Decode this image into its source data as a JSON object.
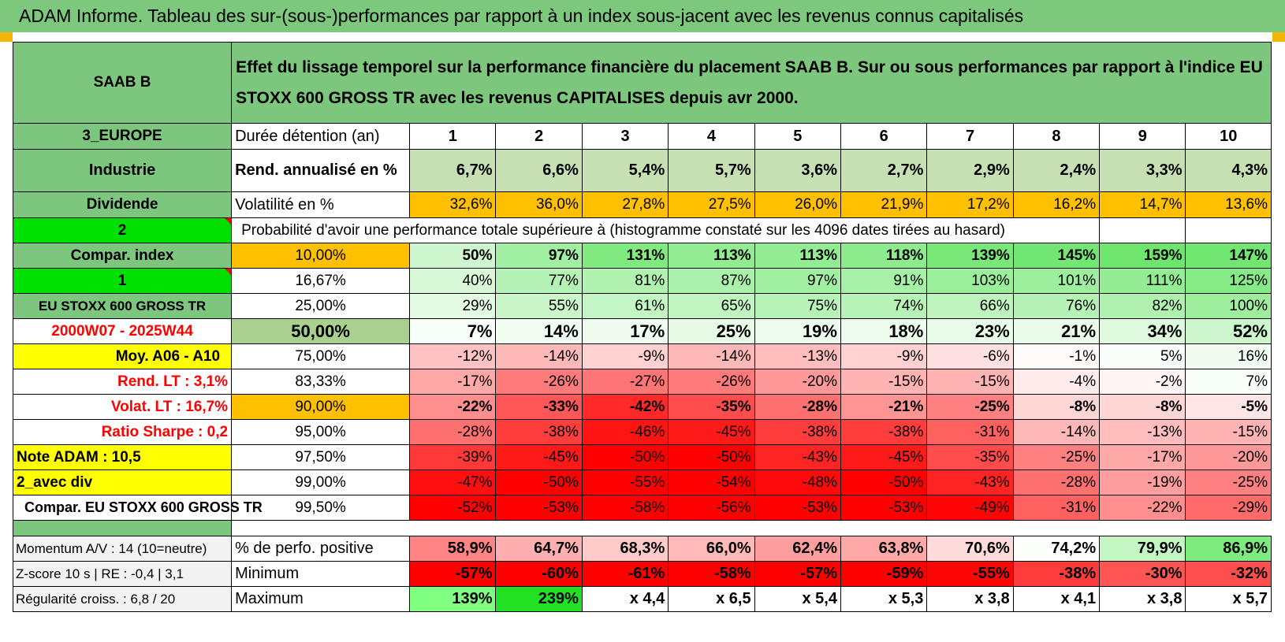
{
  "title": "ADAM Informe. Tableau des sur-(sous-)performances par rapport à un index sous-jacent avec les revenus connus capitalisés",
  "header": {
    "asset": "SAAB B",
    "description": "Effet du lissage temporel sur la performance financière du placement SAAB B. Sur ou sous performances par rapport à l'indice EU STOXX 600 GROSS TR avec les revenus CAPITALISES depuis avr 2000."
  },
  "left_panel": {
    "region": "3_EUROPE",
    "sector": "Industrie",
    "income_type": "Dividende",
    "selector_1": "2",
    "compare_index_label": "Compar. index",
    "selector_2": "1",
    "index_name": "EU STOXX 600 GROSS TR",
    "period": "2000W07 - 2025W44",
    "moy_label": "Moy. A06 - A10",
    "rend_lt": "Rend. LT :    3,1%",
    "volat_lt": "Volat. LT :    16,7%",
    "sharpe": "Ratio Sharpe :    0,2",
    "note_adam": "Note ADAM : 10,5",
    "div_mode": "2_avec div",
    "compar_text": "Compar. EU STOXX 600 GROSS TR",
    "momentum": "Momentum A/V : 14 (10=neutre)",
    "zscore": "Z-score 10 s | RE : -0,4 | 3,1",
    "regularite": "Régularité croiss. : 6,8 / 20"
  },
  "row_labels": {
    "duration": "Durée détention (an)",
    "rend": "Rend. annualisé en %",
    "volat": "Volatilité en %",
    "prob": "Probabilité d'avoir une performance totale supérieure à (histogramme constaté sur les 4096 dates tirées au hasard)",
    "pct_pos": "% de perfo. positive",
    "min": "Minimum",
    "max": "Maximum"
  },
  "years": [
    "1",
    "2",
    "3",
    "4",
    "5",
    "6",
    "7",
    "8",
    "9",
    "10"
  ],
  "rend_values": [
    "6,7%",
    "6,6%",
    "5,4%",
    "5,7%",
    "3,6%",
    "2,7%",
    "2,9%",
    "2,4%",
    "3,3%",
    "4,3%"
  ],
  "volat_values": [
    "32,6%",
    "36,0%",
    "27,8%",
    "27,5%",
    "26,0%",
    "21,9%",
    "17,2%",
    "16,2%",
    "14,7%",
    "13,6%"
  ],
  "prob_rows": [
    {
      "threshold": "10,00%",
      "values": [
        "50%",
        "97%",
        "131%",
        "113%",
        "113%",
        "118%",
        "139%",
        "145%",
        "159%",
        "147%"
      ]
    },
    {
      "threshold": "16,67%",
      "values": [
        "40%",
        "77%",
        "81%",
        "87%",
        "97%",
        "91%",
        "103%",
        "101%",
        "111%",
        "125%"
      ]
    },
    {
      "threshold": "25,00%",
      "values": [
        "29%",
        "55%",
        "61%",
        "65%",
        "75%",
        "74%",
        "66%",
        "76%",
        "82%",
        "100%"
      ]
    },
    {
      "threshold": "50,00%",
      "values": [
        "7%",
        "14%",
        "17%",
        "25%",
        "19%",
        "18%",
        "23%",
        "21%",
        "34%",
        "52%"
      ]
    },
    {
      "threshold": "75,00%",
      "values": [
        "-12%",
        "-14%",
        "-9%",
        "-14%",
        "-13%",
        "-9%",
        "-6%",
        "-1%",
        "5%",
        "16%"
      ]
    },
    {
      "threshold": "83,33%",
      "values": [
        "-17%",
        "-26%",
        "-27%",
        "-26%",
        "-20%",
        "-15%",
        "-15%",
        "-4%",
        "-2%",
        "7%"
      ]
    },
    {
      "threshold": "90,00%",
      "values": [
        "-22%",
        "-33%",
        "-42%",
        "-35%",
        "-28%",
        "-21%",
        "-25%",
        "-8%",
        "-8%",
        "-5%"
      ]
    },
    {
      "threshold": "95,00%",
      "values": [
        "-28%",
        "-38%",
        "-46%",
        "-45%",
        "-38%",
        "-38%",
        "-31%",
        "-14%",
        "-13%",
        "-15%"
      ]
    },
    {
      "threshold": "97,50%",
      "values": [
        "-39%",
        "-45%",
        "-50%",
        "-50%",
        "-43%",
        "-45%",
        "-35%",
        "-25%",
        "-17%",
        "-20%"
      ]
    },
    {
      "threshold": "99,00%",
      "values": [
        "-47%",
        "-50%",
        "-55%",
        "-54%",
        "-48%",
        "-50%",
        "-43%",
        "-28%",
        "-19%",
        "-25%"
      ]
    },
    {
      "threshold": "99,50%",
      "values": [
        "-52%",
        "-53%",
        "-58%",
        "-56%",
        "-53%",
        "-53%",
        "-49%",
        "-31%",
        "-22%",
        "-29%"
      ]
    }
  ],
  "pct_pos_values": [
    "58,9%",
    "64,7%",
    "68,3%",
    "66,0%",
    "62,4%",
    "63,8%",
    "70,6%",
    "74,2%",
    "79,9%",
    "86,9%"
  ],
  "min_values": [
    "-57%",
    "-60%",
    "-61%",
    "-58%",
    "-57%",
    "-59%",
    "-55%",
    "-38%",
    "-30%",
    "-32%"
  ],
  "max_values": [
    "139%",
    "239%",
    "x 4,4",
    "x 6,5",
    "x 5,4",
    "x 5,3",
    "x 3,8",
    "x 4,1",
    "x 3,8",
    "x 5,7"
  ]
}
